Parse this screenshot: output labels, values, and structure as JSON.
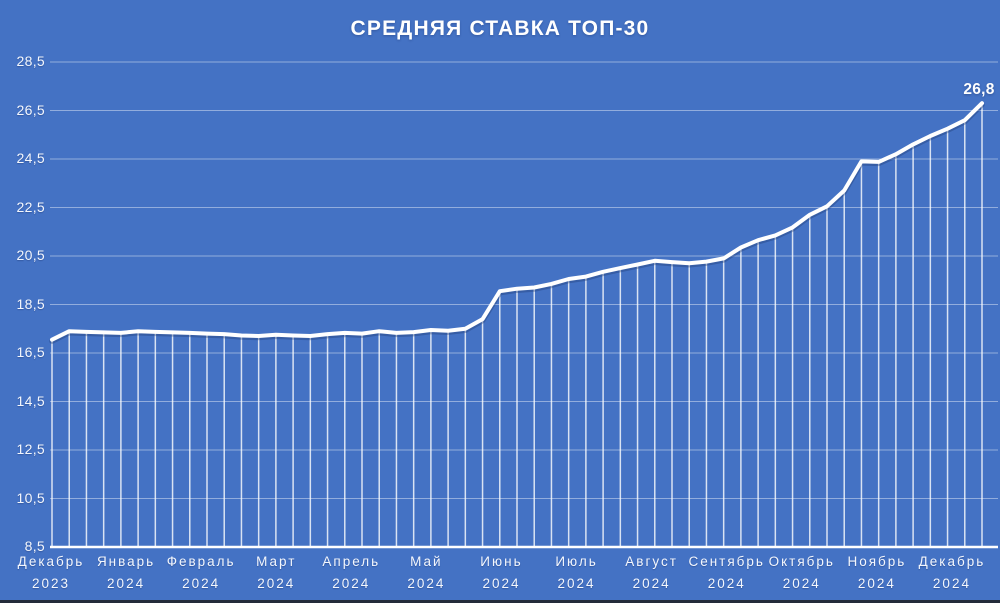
{
  "chart_data": {
    "type": "line",
    "title": "СРЕДНЯЯ СТАВКА ТОП-30",
    "legend": "none",
    "grid": "horizontal",
    "ylim": [
      8.5,
      28.5
    ],
    "y_step": 2,
    "y_tick_labels": [
      "28,5",
      "26,5",
      "24,5",
      "22,5",
      "20,5",
      "18,5",
      "16,5",
      "14,5",
      "12,5",
      "10,5",
      "8,5"
    ],
    "x_labels": [
      {
        "month": "Декабрь",
        "year": "2023"
      },
      {
        "month": "Январь",
        "year": "2024"
      },
      {
        "month": "Февраль",
        "year": "2024"
      },
      {
        "month": "Март",
        "year": "2024"
      },
      {
        "month": "Апрель",
        "year": "2024"
      },
      {
        "month": "Май",
        "year": "2024"
      },
      {
        "month": "Июнь",
        "year": "2024"
      },
      {
        "month": "Июль",
        "year": "2024"
      },
      {
        "month": "Август",
        "year": "2024"
      },
      {
        "month": "Сентябрь",
        "year": "2024"
      },
      {
        "month": "Октябрь",
        "year": "2024"
      },
      {
        "month": "Ноябрь",
        "year": "2024"
      },
      {
        "month": "Декабрь",
        "year": "2024"
      }
    ],
    "values": [
      17.05,
      17.4,
      17.37,
      17.35,
      17.33,
      17.4,
      17.37,
      17.35,
      17.33,
      17.3,
      17.28,
      17.22,
      17.2,
      17.25,
      17.22,
      17.2,
      17.28,
      17.33,
      17.3,
      17.4,
      17.33,
      17.36,
      17.45,
      17.42,
      17.5,
      17.9,
      19.05,
      19.15,
      19.2,
      19.35,
      19.55,
      19.65,
      19.85,
      20.0,
      20.15,
      20.3,
      20.25,
      20.2,
      20.27,
      20.4,
      20.85,
      21.15,
      21.35,
      21.68,
      22.2,
      22.55,
      23.2,
      24.4,
      24.38,
      24.7,
      25.1,
      25.45,
      25.75,
      26.1,
      26.8
    ],
    "end_label": "26,8",
    "colors": {
      "background": "#4472C4",
      "line": "#FFFFFF",
      "grid": "rgba(255,255,255,0.42)",
      "drop_line": "rgba(255,255,255,0.8)",
      "axis": "#FFFFFF",
      "text": "#FFFFFF"
    }
  }
}
